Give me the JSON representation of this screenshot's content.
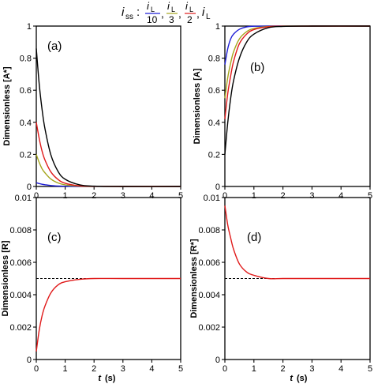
{
  "legend": {
    "prefix": "i",
    "prefix_sub": "ss",
    "colon": ":",
    "entries": [
      {
        "num": "i",
        "num_sub": "L",
        "den": "10",
        "color": "#1f1fd6"
      },
      {
        "num": "i",
        "num_sub": "L",
        "den": "3",
        "color": "#a5a51c"
      },
      {
        "num": "i",
        "num_sub": "L",
        "den": "2",
        "color": "#e01a1a"
      },
      {
        "num": "i",
        "num_sub": "L",
        "den": "",
        "color": "#000000"
      }
    ],
    "separator": ","
  },
  "xaxis_label": {
    "var": "t",
    "unit": "(s)"
  },
  "chart_data": [
    {
      "type": "line",
      "panel_label": "(a)",
      "ylabel": "Dimensionless [A*]",
      "xlim": [
        0,
        5
      ],
      "ylim": [
        0,
        1
      ],
      "xticks": [
        "0",
        "1",
        "2",
        "3",
        "4",
        "5"
      ],
      "yticks": [
        "0",
        "0.2",
        "0.4",
        "0.6",
        "0.8",
        "1"
      ],
      "series": [
        {
          "color": "#1f1fd6",
          "x": [
            0,
            0.1,
            0.2,
            0.3,
            0.5,
            0.75,
            1.0,
            1.5,
            2.0,
            3.0,
            5.0
          ],
          "y": [
            0.024,
            0.018,
            0.014,
            0.011,
            0.006,
            0.003,
            0.0015,
            0.0003,
            0.0001,
            0,
            0
          ]
        },
        {
          "color": "#a5a51c",
          "x": [
            0,
            0.1,
            0.2,
            0.3,
            0.5,
            0.75,
            1.0,
            1.5,
            2.0,
            3.0,
            5.0
          ],
          "y": [
            0.2,
            0.15,
            0.11,
            0.085,
            0.047,
            0.022,
            0.01,
            0.002,
            0.0004,
            0,
            0
          ]
        },
        {
          "color": "#e01a1a",
          "x": [
            0,
            0.1,
            0.2,
            0.3,
            0.5,
            0.75,
            1.0,
            1.5,
            2.0,
            3.0,
            5.0
          ],
          "y": [
            0.4,
            0.3,
            0.22,
            0.165,
            0.092,
            0.044,
            0.02,
            0.004,
            0.001,
            0,
            0
          ]
        },
        {
          "color": "#000000",
          "x": [
            0,
            0.1,
            0.2,
            0.3,
            0.5,
            0.75,
            1.0,
            1.5,
            2.0,
            3.0,
            5.0
          ],
          "y": [
            0.86,
            0.64,
            0.48,
            0.36,
            0.2,
            0.095,
            0.045,
            0.01,
            0.002,
            0,
            0
          ]
        }
      ]
    },
    {
      "type": "line",
      "panel_label": "(b)",
      "ylabel": "Dimensionless [A]",
      "xlim": [
        0,
        5
      ],
      "ylim": [
        0,
        1
      ],
      "xticks": [
        "0",
        "1",
        "2",
        "3",
        "4",
        "5"
      ],
      "yticks": [
        "0",
        "0.2",
        "0.4",
        "0.6",
        "0.8",
        "1"
      ],
      "series": [
        {
          "color": "#1f1fd6",
          "x": [
            0,
            0.1,
            0.2,
            0.3,
            0.5,
            0.75,
            1.0,
            1.5,
            2.0,
            3.0,
            5.0
          ],
          "y": [
            0.76,
            0.86,
            0.92,
            0.95,
            0.98,
            0.995,
            0.999,
            1,
            1,
            1,
            1
          ]
        },
        {
          "color": "#a5a51c",
          "x": [
            0,
            0.1,
            0.2,
            0.3,
            0.5,
            0.75,
            1.0,
            1.5,
            2.0,
            3.0,
            5.0
          ],
          "y": [
            0.55,
            0.68,
            0.77,
            0.84,
            0.92,
            0.965,
            0.985,
            0.997,
            1,
            1,
            1
          ]
        },
        {
          "color": "#e01a1a",
          "x": [
            0,
            0.1,
            0.2,
            0.3,
            0.5,
            0.75,
            1.0,
            1.5,
            2.0,
            3.0,
            5.0
          ],
          "y": [
            0.42,
            0.58,
            0.69,
            0.78,
            0.89,
            0.95,
            0.978,
            0.996,
            0.999,
            1,
            1
          ]
        },
        {
          "color": "#000000",
          "x": [
            0,
            0.1,
            0.2,
            0.3,
            0.5,
            0.75,
            1.0,
            1.5,
            2.0,
            3.0,
            5.0
          ],
          "y": [
            0.2,
            0.4,
            0.55,
            0.66,
            0.8,
            0.9,
            0.95,
            0.99,
            0.998,
            1,
            1
          ]
        }
      ]
    },
    {
      "type": "line",
      "panel_label": "(c)",
      "ylabel": "Dimensionless [R]",
      "xlim": [
        0,
        5
      ],
      "ylim": [
        0,
        0.01
      ],
      "xticks": [
        "0",
        "1",
        "2",
        "3",
        "4",
        "5"
      ],
      "yticks": [
        "0",
        "0.002",
        "0.004",
        "0.006",
        "0.008",
        "0.01"
      ],
      "reference_line": {
        "y": 0.005,
        "style": "dashed",
        "color": "#000000"
      },
      "series": [
        {
          "color": "#e01a1a",
          "x": [
            0,
            0.1,
            0.2,
            0.3,
            0.5,
            0.75,
            1.0,
            1.5,
            2.0,
            3.0,
            5.0
          ],
          "y": [
            0.0005,
            0.0018,
            0.0027,
            0.0033,
            0.0041,
            0.0046,
            0.0048,
            0.00495,
            0.005,
            0.005,
            0.005
          ]
        }
      ]
    },
    {
      "type": "line",
      "panel_label": "(d)",
      "ylabel": "Dimensionless [R*]",
      "xlim": [
        0,
        5
      ],
      "ylim": [
        0,
        0.01
      ],
      "xticks": [
        "0",
        "1",
        "2",
        "3",
        "4",
        "5"
      ],
      "yticks": [
        "0",
        "0.002",
        "0.004",
        "0.006",
        "0.008",
        "0.01"
      ],
      "reference_line": {
        "y": 0.005,
        "style": "dashed",
        "color": "#000000"
      },
      "series": [
        {
          "color": "#e01a1a",
          "x": [
            0,
            0.1,
            0.2,
            0.3,
            0.5,
            0.75,
            1.0,
            1.5,
            2.0,
            3.0,
            5.0
          ],
          "y": [
            0.0095,
            0.0083,
            0.0075,
            0.0068,
            0.0059,
            0.0054,
            0.0052,
            0.005,
            0.005,
            0.005,
            0.005
          ]
        }
      ]
    }
  ]
}
